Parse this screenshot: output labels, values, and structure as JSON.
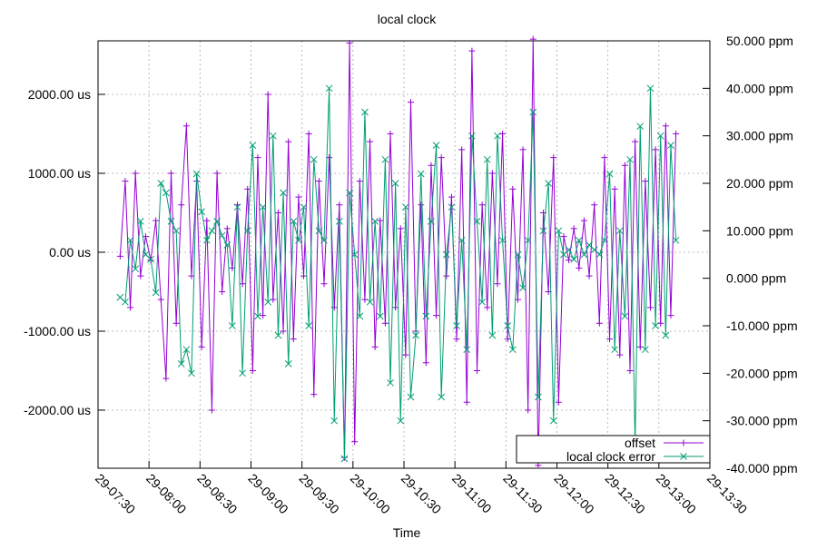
{
  "chart_data": {
    "type": "line",
    "title": "local clock",
    "x_label": "Time",
    "xlim": [
      450,
      810
    ],
    "xticks": [
      {
        "value": 450,
        "label": "29-07:30"
      },
      {
        "value": 480,
        "label": "29-08:00"
      },
      {
        "value": 510,
        "label": "29-08:30"
      },
      {
        "value": 540,
        "label": "29-09:00"
      },
      {
        "value": 570,
        "label": "29-09:30"
      },
      {
        "value": 600,
        "label": "29-10:00"
      },
      {
        "value": 630,
        "label": "29-10:30"
      },
      {
        "value": 660,
        "label": "29-11:00"
      },
      {
        "value": 690,
        "label": "29-11:30"
      },
      {
        "value": 720,
        "label": "29-12:00"
      },
      {
        "value": 750,
        "label": "29-12:30"
      },
      {
        "value": 780,
        "label": "29-13:00"
      },
      {
        "value": 810,
        "label": "29-13:30"
      }
    ],
    "ylim": [
      -2736,
      2678
    ],
    "yticks": [
      {
        "value": -2000,
        "label": "-2000.00 us"
      },
      {
        "value": -1000,
        "label": "-1000.00 us"
      },
      {
        "value": 0,
        "label": "0.00 us"
      },
      {
        "value": 1000,
        "label": "1000.00 us"
      },
      {
        "value": 2000,
        "label": "2000.00 us"
      }
    ],
    "y2lim": [
      -40,
      50
    ],
    "y2ticks": [
      {
        "value": -40,
        "label": "-40.000 ppm"
      },
      {
        "value": -30,
        "label": "-30.000 ppm"
      },
      {
        "value": -20,
        "label": "-20.000 ppm"
      },
      {
        "value": -10,
        "label": "-10.000 ppm"
      },
      {
        "value": 0,
        "label": "0.000 ppm"
      },
      {
        "value": 10,
        "label": "10.000 ppm"
      },
      {
        "value": 20,
        "label": "20.000 ppm"
      },
      {
        "value": 30,
        "label": "30.000 ppm"
      },
      {
        "value": 40,
        "label": "40.000 ppm"
      },
      {
        "value": 50,
        "label": "50.000 ppm"
      }
    ],
    "grid": true,
    "legend_position": "bottom-right",
    "x": [
      463,
      466,
      469,
      472,
      475,
      478,
      481,
      484,
      487,
      490,
      493,
      496,
      499,
      502,
      505,
      508,
      511,
      514,
      517,
      520,
      523,
      526,
      529,
      532,
      535,
      538,
      541,
      544,
      547,
      550,
      553,
      556,
      559,
      562,
      565,
      568,
      571,
      574,
      577,
      580,
      583,
      586,
      589,
      592,
      595,
      598,
      601,
      604,
      607,
      610,
      613,
      616,
      619,
      622,
      625,
      628,
      631,
      634,
      637,
      640,
      643,
      646,
      649,
      652,
      655,
      658,
      661,
      664,
      667,
      670,
      673,
      676,
      679,
      682,
      685,
      688,
      691,
      694,
      697,
      700,
      703,
      706,
      709,
      712,
      715,
      718,
      721,
      724,
      727,
      730,
      733,
      736,
      739,
      742,
      745,
      748,
      751,
      754,
      757,
      760,
      763,
      766,
      769,
      772,
      775,
      778,
      781,
      784,
      787,
      790
    ],
    "series": [
      {
        "name": "offset",
        "color": "#9400d3",
        "marker": "plus",
        "values": [
          -50,
          900,
          -700,
          1000,
          -300,
          200,
          -100,
          400,
          -600,
          -1600,
          1000,
          -900,
          600,
          1600,
          -300,
          900,
          -1200,
          400,
          -2000,
          1000,
          -500,
          300,
          -200,
          600,
          -400,
          800,
          -1500,
          1200,
          -800,
          2000,
          -600,
          500,
          -1000,
          1400,
          -1100,
          700,
          -300,
          1500,
          -1800,
          900,
          -400,
          1200,
          -700,
          600,
          -2600,
          2650,
          -2400,
          900,
          -600,
          1400,
          -1200,
          400,
          -900,
          1500,
          -700,
          300,
          -1300,
          1900,
          -1000,
          600,
          -1400,
          1100,
          -800,
          1200,
          -300,
          700,
          -1100,
          1300,
          -1900,
          2550,
          -1500,
          600,
          -700,
          1000,
          -400,
          1500,
          -1100,
          800,
          -600,
          1300,
          -2000,
          2700,
          -2700,
          500,
          -500,
          1200,
          -1900,
          200,
          -100,
          300,
          -200,
          400,
          -300,
          600,
          -900,
          1200,
          -1100,
          800,
          -1300,
          1100,
          -1500,
          1400,
          -1200,
          900,
          -700,
          1300,
          -900,
          1600,
          -800,
          1500
        ]
      },
      {
        "name": "local clock error",
        "color": "#009e73",
        "marker": "cross",
        "axis": "y2",
        "values": [
          -4,
          -5,
          8,
          2,
          12,
          5,
          4,
          -3,
          20,
          18,
          12,
          10,
          -18,
          -15,
          -20,
          22,
          14,
          8,
          10,
          12,
          9,
          7,
          -10,
          15,
          -20,
          10,
          28,
          -8,
          15,
          -5,
          30,
          -12,
          18,
          -18,
          12,
          8,
          15,
          -10,
          25,
          10,
          8,
          40,
          -30,
          12,
          -38,
          18,
          5,
          -8,
          35,
          -5,
          12,
          -8,
          25,
          -22,
          20,
          -30,
          15,
          -25,
          -12,
          22,
          -8,
          12,
          28,
          -25,
          5,
          15,
          -10,
          8,
          -15,
          30,
          12,
          -5,
          25,
          -12,
          30,
          8,
          -10,
          -15,
          5,
          -2,
          8,
          35,
          -25,
          10,
          20,
          -30,
          10,
          5,
          6,
          4,
          8,
          5,
          7,
          6,
          5,
          8,
          22,
          -15,
          10,
          -8,
          25,
          -35,
          32,
          -15,
          40,
          -10,
          30,
          -12,
          28,
          8
        ]
      }
    ]
  }
}
